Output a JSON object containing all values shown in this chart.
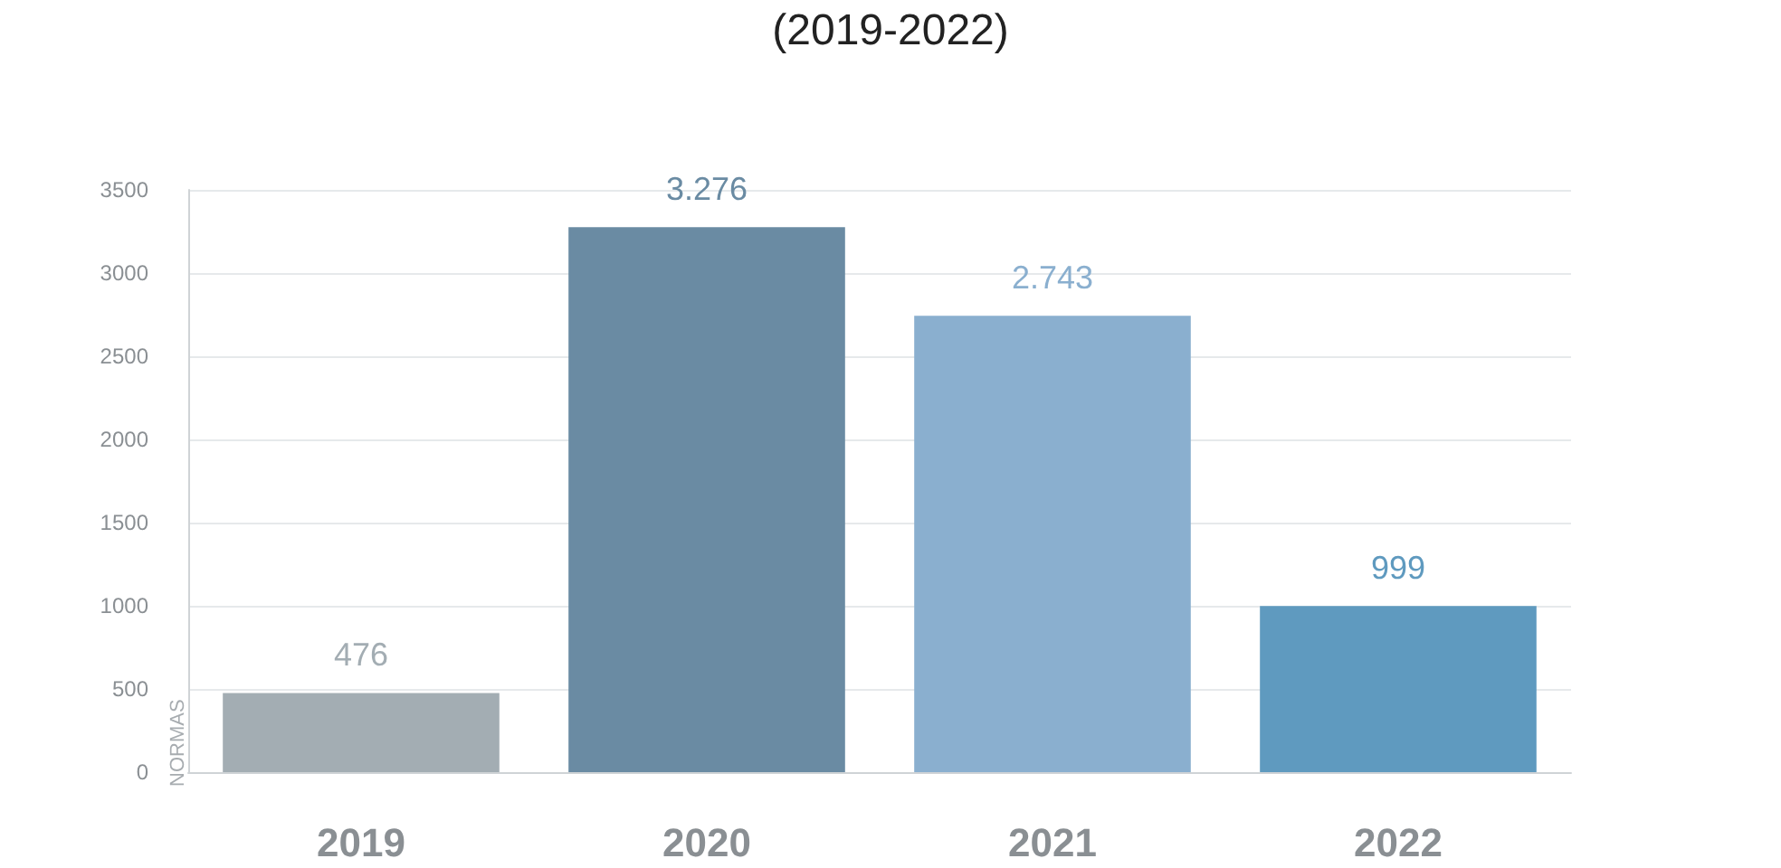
{
  "chart_data": {
    "type": "bar",
    "title": "(2019-2022)",
    "ylabel": "NORMAS",
    "categories": [
      "2019",
      "2020",
      "2021",
      "2022"
    ],
    "values": [
      476,
      3276,
      2743,
      999
    ],
    "colors": [
      "#a3adb3",
      "#6a8ba3",
      "#8aafcf",
      "#5f9abf"
    ],
    "value_labels": [
      "476",
      "3.276",
      "2.743",
      "999"
    ],
    "ylim": [
      0,
      3500
    ],
    "yticks": [
      0,
      500,
      1000,
      1500,
      2000,
      2500,
      3000,
      3500
    ],
    "grid": "y"
  }
}
